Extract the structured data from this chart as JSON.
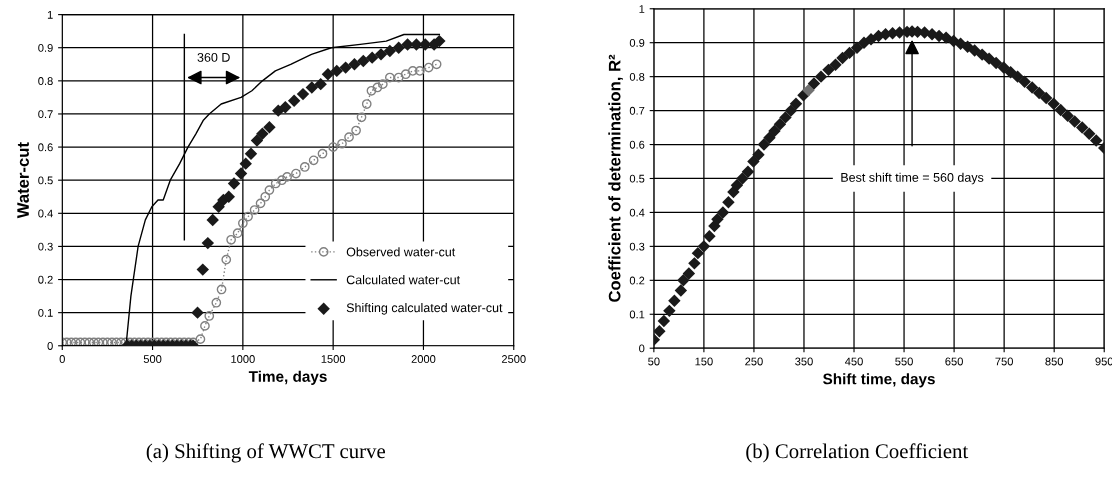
{
  "chart_data": [
    {
      "type": "line",
      "xlabel": "Time, days",
      "ylabel": "Water-cut",
      "xlim": [
        0,
        2500
      ],
      "xticks": [
        0,
        500,
        1000,
        1500,
        2000,
        2500
      ],
      "ylim": [
        0,
        1
      ],
      "yticks": [
        0,
        0.1,
        0.2,
        0.3,
        0.4,
        0.5,
        0.6,
        0.7,
        0.8,
        0.9,
        1
      ],
      "grid": true,
      "legend": "bottom right",
      "series": [
        {
          "name": "Observed water-cut",
          "marker": "circle",
          "line_style": "dotted",
          "color": "#808080",
          "x": [
            0,
            25,
            50,
            75,
            100,
            125,
            150,
            175,
            200,
            225,
            250,
            275,
            300,
            325,
            350,
            375,
            400,
            425,
            450,
            475,
            500,
            525,
            550,
            575,
            600,
            625,
            650,
            675,
            700,
            725,
            765,
            790,
            814,
            853,
            882,
            908,
            935,
            971,
            1000,
            1029,
            1065,
            1098,
            1124,
            1147,
            1182,
            1216,
            1245,
            1294,
            1343,
            1392,
            1441,
            1500,
            1549,
            1588,
            1627,
            1657,
            1686,
            1712,
            1745,
            1775,
            1814,
            1863,
            1902,
            1941,
            1980,
            2029,
            2073
          ],
          "values": [
            0.01,
            0.01,
            0.01,
            0.01,
            0.01,
            0.01,
            0.01,
            0.01,
            0.01,
            0.01,
            0.01,
            0.01,
            0.01,
            0.01,
            0.01,
            0.01,
            0.01,
            0.01,
            0.01,
            0.01,
            0.01,
            0.01,
            0.01,
            0.01,
            0.01,
            0.01,
            0.01,
            0.01,
            0.01,
            0.01,
            0.02,
            0.06,
            0.09,
            0.13,
            0.17,
            0.26,
            0.32,
            0.34,
            0.37,
            0.39,
            0.41,
            0.43,
            0.45,
            0.47,
            0.49,
            0.5,
            0.51,
            0.52,
            0.54,
            0.56,
            0.58,
            0.6,
            0.61,
            0.63,
            0.65,
            0.69,
            0.73,
            0.77,
            0.78,
            0.79,
            0.81,
            0.81,
            0.82,
            0.83,
            0.83,
            0.84,
            0.85
          ]
        },
        {
          "name": "Calculated water-cut",
          "marker": "none",
          "line_style": "solid",
          "color": "#000000",
          "x": [
            0,
            353,
            380,
            420,
            460,
            496,
            530,
            559,
            598,
            650,
            696,
            740,
            780,
            814,
            880,
            990,
            1050,
            1108,
            1180,
            1265,
            1380,
            1490,
            1650,
            1794,
            1892,
            2088
          ],
          "values": [
            0,
            0,
            0.15,
            0.3,
            0.38,
            0.42,
            0.44,
            0.44,
            0.5,
            0.55,
            0.6,
            0.64,
            0.68,
            0.7,
            0.73,
            0.75,
            0.77,
            0.8,
            0.83,
            0.85,
            0.88,
            0.9,
            0.91,
            0.92,
            0.94,
            0.94
          ]
        },
        {
          "name": "Shifting calculated water-cut",
          "type": "scatter",
          "marker": "diamond",
          "color": "#1a1a1a",
          "x": [
            360,
            385,
            410,
            435,
            460,
            485,
            510,
            535,
            560,
            585,
            610,
            635,
            660,
            685,
            710,
            725,
            749,
            778,
            806,
            833,
            866,
            892,
            922,
            951,
            990,
            1016,
            1045,
            1078,
            1108,
            1147,
            1196,
            1235,
            1284,
            1333,
            1382,
            1431,
            1471,
            1520,
            1569,
            1618,
            1667,
            1716,
            1765,
            1814,
            1863,
            1912,
            1961,
            2010,
            2059,
            2088
          ],
          "values": [
            0,
            0,
            0,
            0,
            0,
            0,
            0,
            0,
            0,
            0,
            0,
            0,
            0,
            0,
            0,
            0,
            0.1,
            0.23,
            0.31,
            0.38,
            0.42,
            0.44,
            0.45,
            0.49,
            0.52,
            0.55,
            0.58,
            0.62,
            0.64,
            0.66,
            0.71,
            0.72,
            0.74,
            0.76,
            0.78,
            0.79,
            0.82,
            0.83,
            0.84,
            0.85,
            0.86,
            0.87,
            0.88,
            0.89,
            0.9,
            0.91,
            0.91,
            0.91,
            0.91,
            0.92
          ]
        }
      ],
      "ref_lines": [
        {
          "axis": "x",
          "value": 676,
          "color": "#000000"
        }
      ],
      "annotations": [
        {
          "text": "360 D",
          "x": 676,
          "y": 0.81
        },
        "(a) Shifting of WWCT curve"
      ]
    },
    {
      "type": "scatter",
      "xlabel": "Shift time, days",
      "ylabel": "Coefficient of determination, R²",
      "xlim": [
        50,
        950
      ],
      "xticks": [
        50,
        150,
        250,
        350,
        450,
        550,
        650,
        750,
        850,
        950
      ],
      "ylim": [
        0,
        1
      ],
      "yticks": [
        0,
        0.1,
        0.2,
        0.3,
        0.4,
        0.5,
        0.6,
        0.7,
        0.8,
        0.9,
        1
      ],
      "grid": true,
      "series": [
        {
          "marker": "diamond",
          "color": "#1a1a1a",
          "x": [
            50,
            61,
            70,
            81,
            91,
            104,
            109,
            120,
            131,
            138,
            150,
            161,
            171,
            177,
            188,
            199,
            209,
            216,
            227,
            238,
            249,
            259,
            270,
            281,
            291,
            302,
            313,
            324,
            334,
            349,
            359,
            370,
            384,
            399,
            413,
            427,
            441,
            456,
            470,
            484,
            499,
            513,
            527,
            541,
            556,
            566,
            577,
            591,
            606,
            620,
            634,
            649,
            663,
            677,
            691,
            706,
            720,
            734,
            749,
            763,
            777,
            791,
            806,
            820,
            834,
            849,
            863,
            877,
            891,
            906,
            920,
            934,
            950
          ],
          "values": [
            0.025,
            0.05,
            0.08,
            0.11,
            0.14,
            0.17,
            0.2,
            0.22,
            0.25,
            0.28,
            0.3,
            0.33,
            0.36,
            0.38,
            0.4,
            0.43,
            0.46,
            0.48,
            0.5,
            0.52,
            0.55,
            0.57,
            0.6,
            0.62,
            0.64,
            0.66,
            0.68,
            0.7,
            0.72,
            0.745,
            0.76,
            0.78,
            0.8,
            0.82,
            0.835,
            0.855,
            0.87,
            0.885,
            0.9,
            0.91,
            0.92,
            0.925,
            0.928,
            0.93,
            0.932,
            0.933,
            0.932,
            0.93,
            0.925,
            0.92,
            0.915,
            0.905,
            0.897,
            0.888,
            0.877,
            0.865,
            0.853,
            0.84,
            0.827,
            0.813,
            0.8,
            0.785,
            0.768,
            0.752,
            0.737,
            0.72,
            0.702,
            0.685,
            0.668,
            0.65,
            0.632,
            0.612,
            0.59
          ],
          "colors": [
            "#1a1a1a",
            "#1a1a1a",
            "#1a1a1a",
            "#1a1a1a",
            "#1a1a1a",
            "#1a1a1a",
            "#1a1a1a",
            "#1a1a1a",
            "#1a1a1a",
            "#1a1a1a",
            "#1a1a1a",
            "#1a1a1a",
            "#1a1a1a",
            "#1a1a1a",
            "#1a1a1a",
            "#1a1a1a",
            "#1a1a1a",
            "#1a1a1a",
            "#1a1a1a",
            "#1a1a1a",
            "#1a1a1a",
            "#1a1a1a",
            "#1a1a1a",
            "#1a1a1a",
            "#1a1a1a",
            "#1a1a1a",
            "#1a1a1a",
            "#1a1a1a",
            "#1a1a1a",
            "#1a1a1a",
            "#707070",
            "#1a1a1a",
            "#1a1a1a",
            "#1a1a1a",
            "#1a1a1a",
            "#1a1a1a",
            "#1a1a1a",
            "#1a1a1a",
            "#1a1a1a",
            "#1a1a1a",
            "#1a1a1a",
            "#1a1a1a",
            "#1a1a1a",
            "#1a1a1a",
            "#1a1a1a",
            "#1a1a1a",
            "#1a1a1a",
            "#1a1a1a",
            "#1a1a1a",
            "#1a1a1a",
            "#1a1a1a",
            "#1a1a1a",
            "#1a1a1a",
            "#1a1a1a",
            "#1a1a1a",
            "#1a1a1a",
            "#1a1a1a",
            "#1a1a1a",
            "#1a1a1a",
            "#1a1a1a",
            "#1a1a1a",
            "#1a1a1a",
            "#1a1a1a",
            "#1a1a1a",
            "#1a1a1a",
            "#1a1a1a",
            "#1a1a1a",
            "#1a1a1a",
            "#1a1a1a",
            "#1a1a1a",
            "#1a1a1a",
            "#1a1a1a",
            "#1a1a1a"
          ]
        }
      ],
      "annotations": [
        "Best shift time = 560 days",
        "(b) Correlation Coefficient"
      ]
    }
  ]
}
